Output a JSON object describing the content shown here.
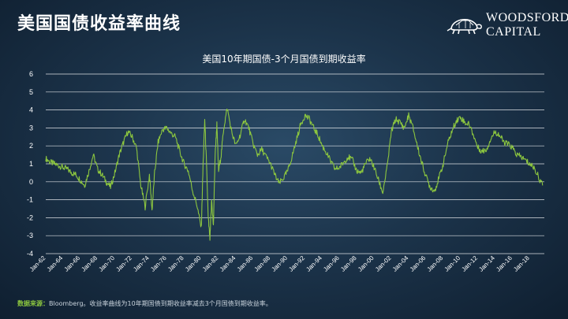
{
  "header": {
    "title": "美国国债收益率曲线",
    "logo_line1": "WOODSFORD",
    "logo_line2": "CAPITAL"
  },
  "footnote": {
    "source_label": "数据来源：",
    "text": "Bloomberg。收益率曲线为10年期国债到期收益率减去3个月国债到期收益率。"
  },
  "colors": {
    "line": "#8cc63f",
    "grid": "#ffffff"
  },
  "chart_data": {
    "type": "line",
    "title": "美国10年期国债-3个月国债到期收益率",
    "xlabel": "",
    "ylabel": "",
    "ylim": [
      -4,
      6
    ],
    "yticks": [
      "-4",
      "-3",
      "-2",
      "-1",
      "0",
      "1",
      "2",
      "3",
      "4",
      "5",
      "6"
    ],
    "xticks": [
      "Jan-62",
      "Jan-64",
      "Jan-66",
      "Jan-68",
      "Jan-70",
      "Jan-72",
      "Jan-74",
      "Jan-76",
      "Jan-78",
      "Jan-80",
      "Jan-82",
      "Jan-84",
      "Jan-86",
      "Jan-88",
      "Jan-90",
      "Jan-92",
      "Jan-94",
      "Jan-96",
      "Jan-98",
      "Jan-00",
      "Jan-02",
      "Jan-04",
      "Jan-06",
      "Jan-08",
      "Jan-10",
      "Jan-12",
      "Jan-14",
      "Jan-16",
      "Jan-18"
    ],
    "xrange": [
      1962.0,
      2019.7
    ],
    "grid": true,
    "series": [
      {
        "x": [
          1962.0,
          1962.5,
          1963.0,
          1963.5,
          1964.0,
          1964.5,
          1965.0,
          1965.5,
          1966.0,
          1966.5,
          1967.0,
          1967.5,
          1968.0,
          1968.5,
          1969.0,
          1969.5,
          1970.0,
          1970.5,
          1971.0,
          1971.5,
          1972.0,
          1972.5,
          1973.0,
          1973.5,
          1974.0,
          1974.3,
          1974.6,
          1975.0,
          1975.5,
          1976.0,
          1976.5,
          1977.0,
          1977.5,
          1978.0,
          1978.5,
          1979.0,
          1979.5,
          1980.0,
          1980.2,
          1980.4,
          1980.6,
          1980.8,
          1981.0,
          1981.2,
          1981.4,
          1981.6,
          1981.8,
          1982.0,
          1982.3,
          1982.6,
          1983.0,
          1983.5,
          1984.0,
          1984.5,
          1985.0,
          1985.5,
          1986.0,
          1986.5,
          1987.0,
          1987.5,
          1988.0,
          1988.5,
          1989.0,
          1989.5,
          1990.0,
          1990.5,
          1991.0,
          1991.5,
          1992.0,
          1992.5,
          1993.0,
          1993.5,
          1994.0,
          1994.5,
          1995.0,
          1995.5,
          1996.0,
          1996.5,
          1997.0,
          1997.5,
          1998.0,
          1998.5,
          1999.0,
          1999.5,
          2000.0,
          2000.5,
          2001.0,
          2001.5,
          2002.0,
          2002.5,
          2003.0,
          2003.5,
          2004.0,
          2004.5,
          2005.0,
          2005.5,
          2006.0,
          2006.5,
          2007.0,
          2007.5,
          2008.0,
          2008.5,
          2009.0,
          2009.5,
          2010.0,
          2010.5,
          2011.0,
          2011.5,
          2012.0,
          2012.5,
          2013.0,
          2013.5,
          2014.0,
          2014.5,
          2015.0,
          2015.5,
          2016.0,
          2016.5,
          2017.0,
          2017.5,
          2018.0,
          2018.5,
          2019.0,
          2019.5
        ],
        "values": [
          1.3,
          1.1,
          1.0,
          0.9,
          0.8,
          0.7,
          0.5,
          0.4,
          0.1,
          -0.2,
          0.6,
          1.5,
          0.7,
          0.4,
          0.0,
          -0.3,
          0.5,
          1.5,
          2.2,
          2.8,
          2.5,
          1.9,
          -0.2,
          -1.4,
          0.4,
          -1.6,
          0.5,
          2.2,
          2.9,
          3.0,
          2.7,
          2.5,
          1.7,
          1.0,
          0.6,
          -0.5,
          -1.3,
          -2.6,
          0.8,
          3.5,
          1.0,
          -2.0,
          -3.2,
          -1.0,
          -2.5,
          1.5,
          3.2,
          0.6,
          1.5,
          3.0,
          4.1,
          2.8,
          2.0,
          2.6,
          3.5,
          3.0,
          2.1,
          1.5,
          1.8,
          1.4,
          1.0,
          0.4,
          -0.1,
          0.2,
          0.6,
          1.4,
          2.3,
          3.2,
          3.7,
          3.5,
          3.0,
          2.6,
          2.0,
          1.6,
          1.1,
          0.7,
          0.8,
          1.1,
          1.4,
          1.2,
          0.6,
          0.5,
          1.0,
          1.3,
          0.8,
          0.1,
          -0.6,
          0.8,
          2.8,
          3.5,
          3.3,
          3.0,
          3.7,
          3.0,
          2.0,
          1.1,
          0.3,
          -0.3,
          -0.5,
          0.2,
          1.0,
          2.1,
          2.8,
          3.4,
          3.6,
          3.3,
          3.2,
          2.6,
          1.9,
          1.7,
          1.8,
          2.4,
          2.8,
          2.6,
          2.2,
          2.1,
          1.9,
          1.5,
          1.4,
          1.2,
          1.0,
          0.8,
          0.3,
          -0.2
        ]
      }
    ]
  }
}
